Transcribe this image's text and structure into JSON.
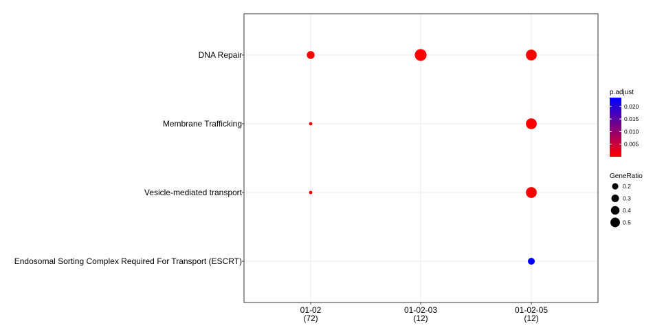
{
  "chart_data": {
    "type": "scatter",
    "title": "",
    "xlabel": "",
    "ylabel": "",
    "x_categories": [
      {
        "label": "01-02",
        "count": "(72)"
      },
      {
        "label": "01-02-03",
        "count": "(12)"
      },
      {
        "label": "01-02-05",
        "count": "(12)"
      }
    ],
    "y_categories": [
      "DNA Repair",
      "Membrane Trafficking",
      "Vesicle-mediated transport",
      "Endosomal Sorting Complex Required For Transport (ESCRT)"
    ],
    "points": [
      {
        "x": "01-02",
        "y": "DNA Repair",
        "gene_ratio": 0.22,
        "p_adjust": 0.0002
      },
      {
        "x": "01-02-03",
        "y": "DNA Repair",
        "gene_ratio": 0.5,
        "p_adjust": 0.0001
      },
      {
        "x": "01-02-05",
        "y": "DNA Repair",
        "gene_ratio": 0.42,
        "p_adjust": 0.0002
      },
      {
        "x": "01-02",
        "y": "Membrane Trafficking",
        "gene_ratio": 0.04,
        "p_adjust": 0.0008
      },
      {
        "x": "01-02-05",
        "y": "Membrane Trafficking",
        "gene_ratio": 0.42,
        "p_adjust": 0.0002
      },
      {
        "x": "01-02",
        "y": "Vesicle-mediated transport",
        "gene_ratio": 0.04,
        "p_adjust": 0.0008
      },
      {
        "x": "01-02-05",
        "y": "Vesicle-mediated transport",
        "gene_ratio": 0.42,
        "p_adjust": 0.0002
      },
      {
        "x": "01-02-05",
        "y": "Endosomal Sorting Complex Required For Transport (ESCRT)",
        "gene_ratio": 0.17,
        "p_adjust": 0.0235
      }
    ],
    "color_legend": {
      "title": "p.adjust",
      "low_color": "#ff0000",
      "high_color": "#0000ff",
      "range": [
        0,
        0.0235
      ],
      "ticks": [
        0.005,
        0.01,
        0.015,
        0.02
      ],
      "tick_labels": [
        "0.005",
        "0.010",
        "0.015",
        "0.020"
      ]
    },
    "size_legend": {
      "title": "GeneRatio",
      "values": [
        0.2,
        0.3,
        0.4,
        0.5
      ],
      "labels": [
        "0.2",
        "0.3",
        "0.4",
        "0.5"
      ]
    },
    "grid": true,
    "legend_position": "right"
  }
}
